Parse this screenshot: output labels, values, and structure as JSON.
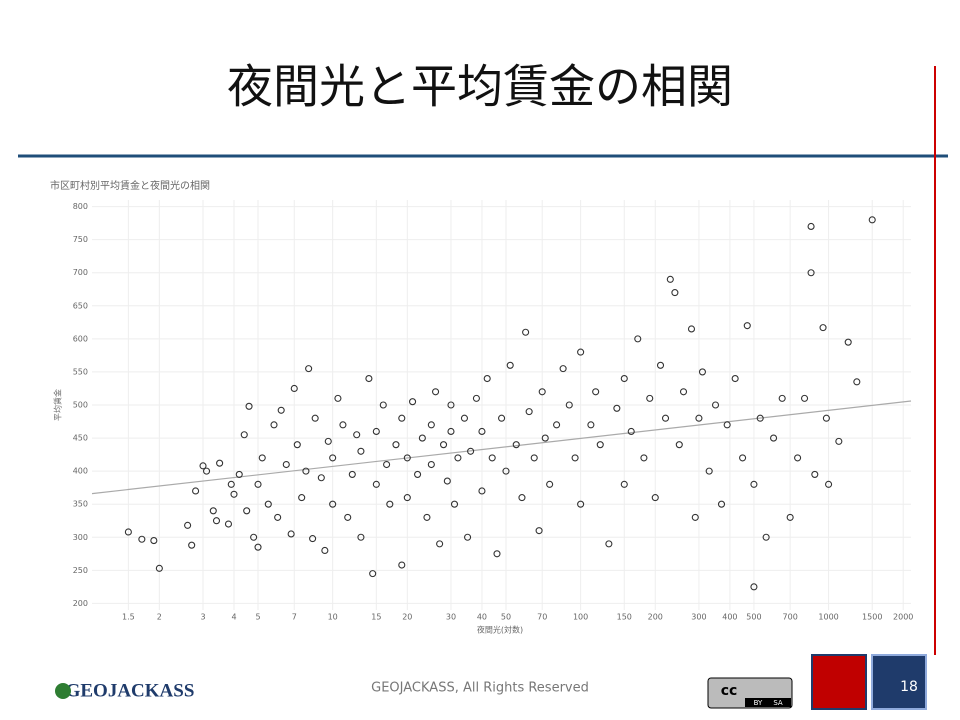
{
  "slide": {
    "title": "夜間光と平均賃金の相関",
    "copyright": "GEOJACKASS, All Rights Reserved",
    "logo": "GEOJACKASS",
    "page": "18",
    "license": [
      "BY",
      "SA"
    ]
  },
  "chart_data": {
    "type": "scatter",
    "title": "市区町村別平均賃金と夜間光の相関",
    "xlabel": "夜間光(対数)",
    "ylabel": "平均賃金",
    "xscale": "log",
    "xlim": [
      1.07,
      2150
    ],
    "ylim": [
      190,
      810
    ],
    "xticks": [
      1.5,
      2,
      3,
      4,
      5,
      7,
      10,
      15,
      20,
      30,
      40,
      50,
      70,
      100,
      150,
      200,
      300,
      400,
      500,
      700,
      1000,
      1500,
      2000
    ],
    "yticks": [
      200,
      250,
      300,
      350,
      400,
      450,
      500,
      550,
      600,
      650,
      700,
      750,
      800
    ],
    "grid": true,
    "color": "#333333",
    "trend_color": "#aaaaaa",
    "trendline": {
      "x": [
        1.07,
        2150
      ],
      "y": [
        366,
        506
      ]
    },
    "x": [
      1.5,
      1.7,
      2,
      1.9,
      2.6,
      2.7,
      2.8,
      3,
      3.1,
      3.3,
      3.5,
      3.4,
      3.8,
      3.9,
      4,
      4.2,
      4.4,
      4.5,
      4.6,
      4.8,
      5,
      5,
      5.2,
      5.5,
      5.8,
      6,
      6.2,
      6.5,
      6.8,
      7,
      7.2,
      7.5,
      7.8,
      8,
      8.3,
      8.5,
      9,
      9.3,
      9.6,
      10,
      10,
      10.5,
      11,
      11.5,
      12,
      12.5,
      13,
      13,
      14,
      14.5,
      15,
      15,
      16,
      16.5,
      17,
      18,
      19,
      19,
      20,
      20,
      21,
      22,
      23,
      24,
      25,
      25,
      26,
      27,
      28,
      29,
      30,
      30,
      31,
      32,
      34,
      35,
      36,
      38,
      40,
      40,
      42,
      44,
      46,
      48,
      50,
      52,
      55,
      58,
      60,
      62,
      65,
      68,
      70,
      72,
      75,
      80,
      85,
      90,
      95,
      100,
      100,
      110,
      115,
      120,
      130,
      140,
      150,
      150,
      160,
      170,
      180,
      190,
      200,
      210,
      220,
      230,
      240,
      250,
      260,
      280,
      290,
      300,
      310,
      330,
      350,
      370,
      390,
      420,
      450,
      470,
      500,
      500,
      530,
      560,
      600,
      650,
      700,
      750,
      800,
      850,
      850,
      880,
      950,
      980,
      1000,
      1100,
      1200,
      1300,
      1500
    ],
    "values": [
      308,
      297,
      253,
      295,
      318,
      288,
      370,
      408,
      400,
      340,
      412,
      325,
      320,
      380,
      365,
      395,
      455,
      340,
      498,
      300,
      285,
      380,
      420,
      350,
      470,
      330,
      492,
      410,
      305,
      525,
      440,
      360,
      400,
      555,
      298,
      480,
      390,
      280,
      445,
      420,
      350,
      510,
      470,
      330,
      395,
      455,
      300,
      430,
      540,
      245,
      380,
      460,
      500,
      410,
      350,
      440,
      258,
      480,
      420,
      360,
      505,
      395,
      450,
      330,
      470,
      410,
      520,
      290,
      440,
      385,
      500,
      460,
      350,
      420,
      480,
      300,
      430,
      510,
      460,
      370,
      540,
      420,
      275,
      480,
      400,
      560,
      440,
      360,
      610,
      490,
      420,
      310,
      520,
      450,
      380,
      470,
      555,
      500,
      420,
      580,
      350,
      470,
      520,
      440,
      290,
      495,
      380,
      540,
      460,
      600,
      420,
      510,
      360,
      560,
      480,
      690,
      670,
      440,
      520,
      615,
      330,
      480,
      550,
      400,
      500,
      350,
      470,
      540,
      420,
      620,
      225,
      380,
      480,
      300,
      450,
      510,
      330,
      420,
      510,
      770,
      700,
      395,
      617,
      480,
      380,
      445,
      595,
      535,
      780
    ]
  }
}
